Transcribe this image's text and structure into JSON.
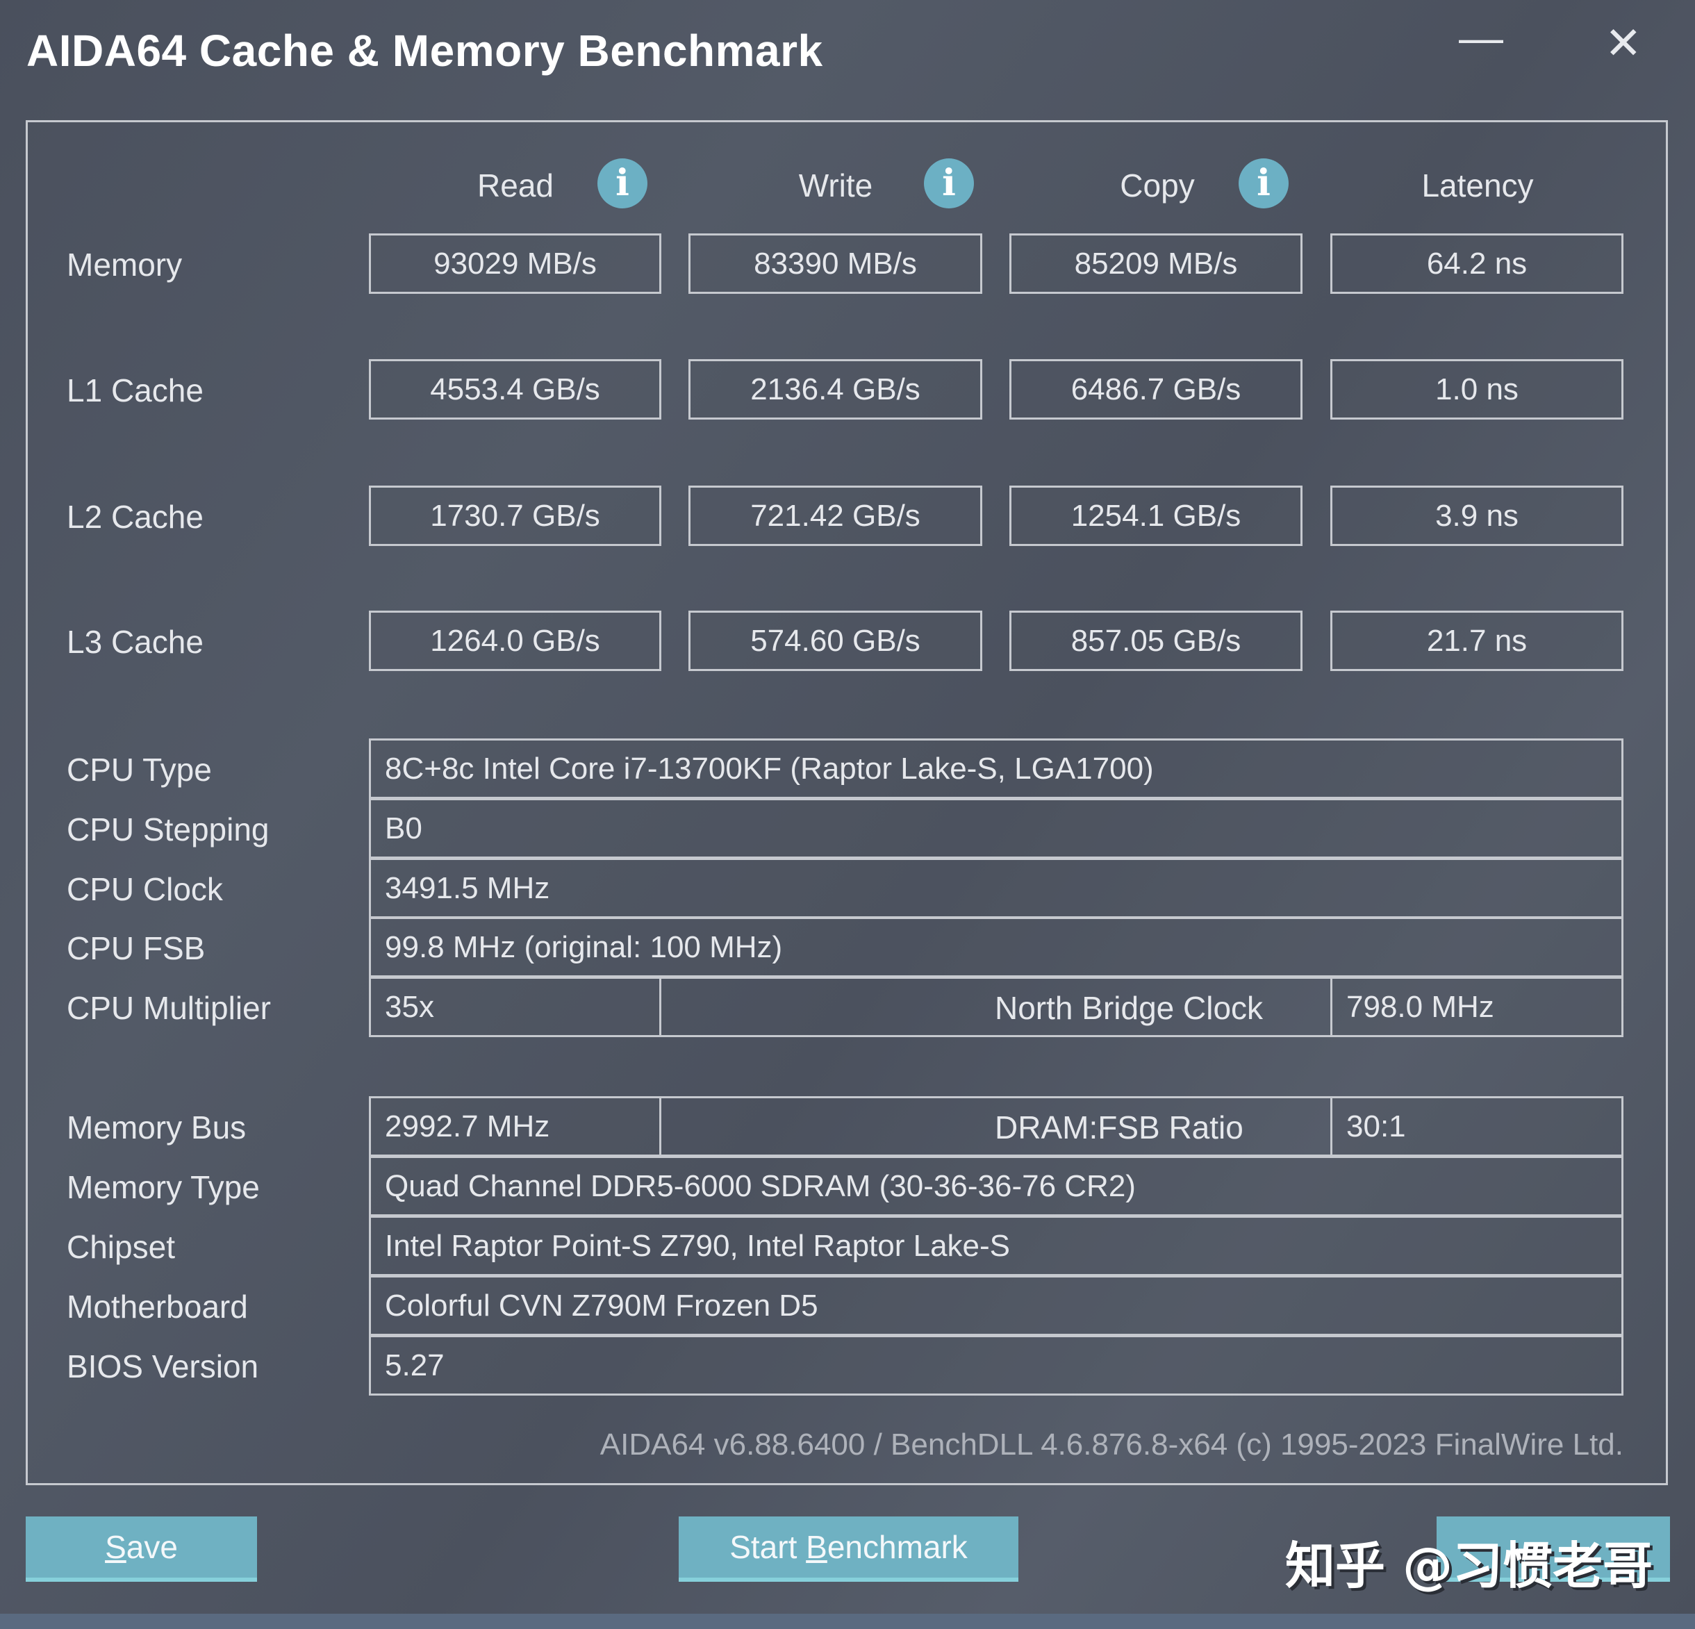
{
  "window": {
    "title": "AIDA64 Cache & Memory Benchmark",
    "minimize_icon": "minimize-icon",
    "close_icon": "close-icon"
  },
  "columns": [
    "Read",
    "Write",
    "Copy",
    "Latency"
  ],
  "info_icon": "info-icon",
  "rows": [
    {
      "label": "Memory",
      "values": [
        "93029 MB/s",
        "83390 MB/s",
        "85209 MB/s",
        "64.2 ns"
      ]
    },
    {
      "label": "L1 Cache",
      "values": [
        "4553.4 GB/s",
        "2136.4 GB/s",
        "6486.7 GB/s",
        "1.0 ns"
      ]
    },
    {
      "label": "L2 Cache",
      "values": [
        "1730.7 GB/s",
        "721.42 GB/s",
        "1254.1 GB/s",
        "3.9 ns"
      ]
    },
    {
      "label": "L3 Cache",
      "values": [
        "1264.0 GB/s",
        "574.60 GB/s",
        "857.05 GB/s",
        "21.7 ns"
      ]
    }
  ],
  "info": {
    "cpu_type": {
      "label": "CPU Type",
      "value": "8C+8c Intel Core i7-13700KF  (Raptor Lake-S, LGA1700)"
    },
    "cpu_stepping": {
      "label": "CPU Stepping",
      "value": "B0"
    },
    "cpu_clock": {
      "label": "CPU Clock",
      "value": "3491.5 MHz"
    },
    "cpu_fsb": {
      "label": "CPU FSB",
      "value": "99.8 MHz  (original: 100 MHz)"
    },
    "cpu_multiplier": {
      "label": "CPU Multiplier",
      "value": "35x"
    },
    "north_bridge": {
      "label": "North Bridge Clock",
      "value": "798.0 MHz"
    },
    "memory_bus": {
      "label": "Memory Bus",
      "value": "2992.7 MHz"
    },
    "dram_ratio": {
      "label": "DRAM:FSB Ratio",
      "value": "30:1"
    },
    "memory_type": {
      "label": "Memory Type",
      "value": "Quad Channel DDR5-6000 SDRAM  (30-36-36-76 CR2)"
    },
    "chipset": {
      "label": "Chipset",
      "value": "Intel Raptor Point-S Z790, Intel Raptor Lake-S"
    },
    "motherboard": {
      "label": "Motherboard",
      "value": "Colorful CVN Z790M Frozen D5"
    },
    "bios": {
      "label": "BIOS Version",
      "value": "5.27"
    }
  },
  "footer": "AIDA64 v6.88.6400 / BenchDLL 4.6.876.8-x64  (c) 1995-2023 FinalWire Ltd.",
  "buttons": {
    "save_first": "S",
    "save_rest": "ave",
    "start_pre": "Start ",
    "start_ul": "B",
    "start_rest": "enchmark"
  },
  "watermark": "知乎 @习惯老哥",
  "colors": {
    "accent": "#6fb1c2",
    "background": "#4f5562",
    "border": "#c6c9cf"
  }
}
